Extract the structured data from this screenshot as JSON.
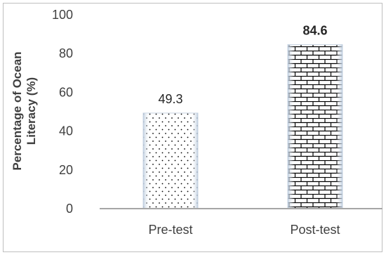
{
  "chart_data": {
    "type": "bar",
    "categories": [
      "Pre-test",
      "Post-test"
    ],
    "values": [
      49.3,
      84.6
    ],
    "data_labels": [
      "49.3",
      "84.6"
    ],
    "ylabel_line1": "Percentage of Ocean",
    "ylabel_line2": "Literacy (%)",
    "ylim": [
      0,
      100
    ],
    "yticks": [
      0,
      20,
      40,
      60,
      80,
      100
    ],
    "grid": false,
    "bar_patterns": [
      "dotted",
      "brick"
    ],
    "colors": {
      "bar_fill": "#ffffff",
      "bar_edge": "#c9d5e3",
      "pattern": "#000000",
      "axis": "#a6a6a6",
      "text": "#404040"
    }
  }
}
